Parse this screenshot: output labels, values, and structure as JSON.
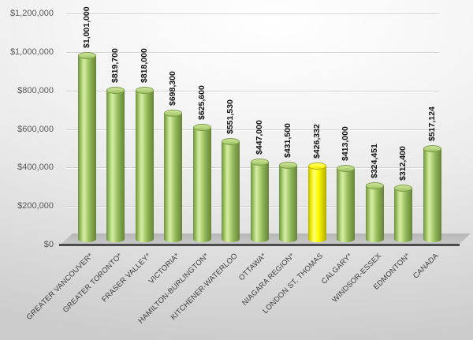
{
  "chart_data": {
    "type": "bar",
    "subtype": "3d-cylinder",
    "title": "",
    "xlabel": "",
    "ylabel": "",
    "categories": [
      "GREATER VANCOUVER*",
      "GREATER TORONTO*",
      "FRASER VALLEY*",
      "VICTORIA*",
      "HAMILTON-BURLINGTON*",
      "KITCHENER-WATERLOO",
      "OTTAWA*",
      "NIAGARA REGION*",
      "LONDON ST. THOMAS",
      "CALGARY*",
      "WINDSOR-ESSEX",
      "EDMONTON*",
      "CANADA"
    ],
    "values": [
      1001000,
      819700,
      818000,
      698300,
      625600,
      551530,
      447000,
      431500,
      426332,
      413000,
      324451,
      312400,
      517124
    ],
    "value_labels": [
      "$1,001,000",
      "$819,700",
      "$818,000",
      "$698,300",
      "$625,600",
      "$551,530",
      "$447,000",
      "$431,500",
      "$426,332",
      "$413,000",
      "$324,451",
      "$312,400",
      "$517,124"
    ],
    "highlight_index": 8,
    "ylim": [
      0,
      1200000
    ],
    "y_ticks": {
      "labels": [
        "$1,200,000",
        "$1,000,000",
        "$800,000",
        "$600,000",
        "$400,000",
        "$200,000",
        "$0"
      ],
      "values": [
        1200000,
        1000000,
        800000,
        600000,
        400000,
        200000,
        0
      ]
    },
    "grid": true,
    "legend": "none",
    "colors": {
      "bar": "#9cc35f",
      "bar_highlight": "#ffff00",
      "axis_line": "#4c4c4c",
      "tick_text": "#595959",
      "category_text": "#3f3f3f",
      "data_label_text": "#111111",
      "floor": "#bdbdbd",
      "background_light": "#ffffff",
      "background_dark": "#cccccc"
    }
  }
}
